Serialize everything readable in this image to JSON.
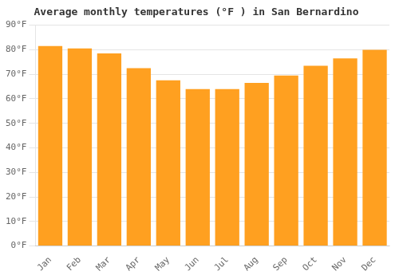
{
  "chart_data": {
    "type": "bar",
    "title": "Average monthly temperatures (°F ) in San Bernardino",
    "categories": [
      "Jan",
      "Feb",
      "Mar",
      "Apr",
      "May",
      "Jun",
      "Jul",
      "Aug",
      "Sep",
      "Oct",
      "Nov",
      "Dec"
    ],
    "values": [
      81.5,
      80.5,
      78.5,
      72.5,
      67.5,
      64.0,
      64.0,
      66.5,
      69.5,
      73.5,
      76.5,
      80.0
    ],
    "color": "#FFA020",
    "ylim": [
      0,
      90
    ],
    "yticks": [
      {
        "value": 0,
        "label": "0°F"
      },
      {
        "value": 10,
        "label": "10°F"
      },
      {
        "value": 20,
        "label": "20°F"
      },
      {
        "value": 30,
        "label": "30°F"
      },
      {
        "value": 40,
        "label": "40°F"
      },
      {
        "value": 50,
        "label": "50°F"
      },
      {
        "value": 60,
        "label": "60°F"
      },
      {
        "value": 70,
        "label": "70°F"
      },
      {
        "value": 80,
        "label": "80°F"
      },
      {
        "value": 90,
        "label": "90°F"
      }
    ],
    "grid": "y"
  }
}
